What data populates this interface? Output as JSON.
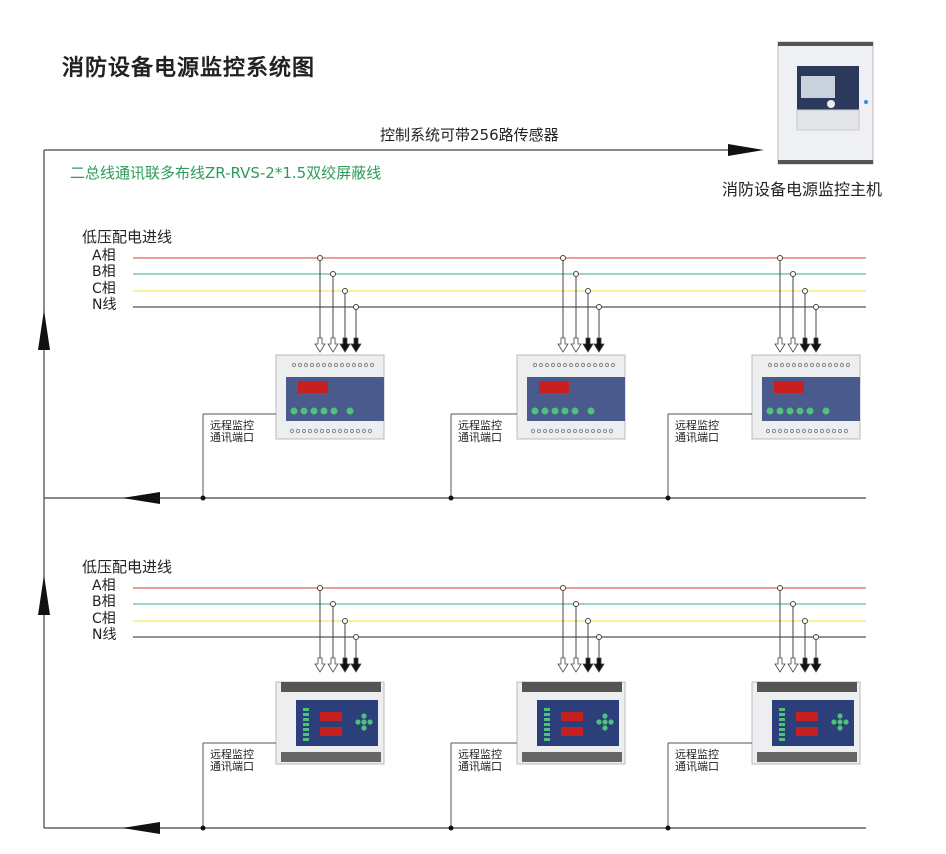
{
  "title": "消防设备电源监控系统图",
  "capacity_note": "控制系统可带256路传感器",
  "bus_spec": "二总线通讯联多布线ZR-RVS-2*1.5双绞屏蔽线",
  "host": {
    "label": "消防设备电源监控主机"
  },
  "phase_colors": {
    "A": "#e06666",
    "B": "#5fbf8f",
    "C": "#f3e36a",
    "N": "#555555"
  },
  "sections": [
    {
      "label": "低压配电进线",
      "phases": [
        "A相",
        "B相",
        "C相",
        "N线"
      ],
      "device_type": "din-rail-voltage-current-sensor",
      "devices": [
        {
          "comm_label": [
            "远程监控",
            "通讯端口"
          ]
        },
        {
          "comm_label": [
            "远程监控",
            "通讯端口"
          ]
        },
        {
          "comm_label": [
            "远程监控",
            "通讯端口"
          ]
        }
      ]
    },
    {
      "label": "低压配电进线",
      "phases": [
        "A相",
        "B相",
        "C相",
        "N线"
      ],
      "device_type": "panel-voltage-current-sensor",
      "devices": [
        {
          "comm_label": [
            "远程监控",
            "通讯端口"
          ]
        },
        {
          "comm_label": [
            "远程监控",
            "通讯端口"
          ]
        },
        {
          "comm_label": [
            "远程监控",
            "通讯端口"
          ]
        }
      ]
    }
  ]
}
